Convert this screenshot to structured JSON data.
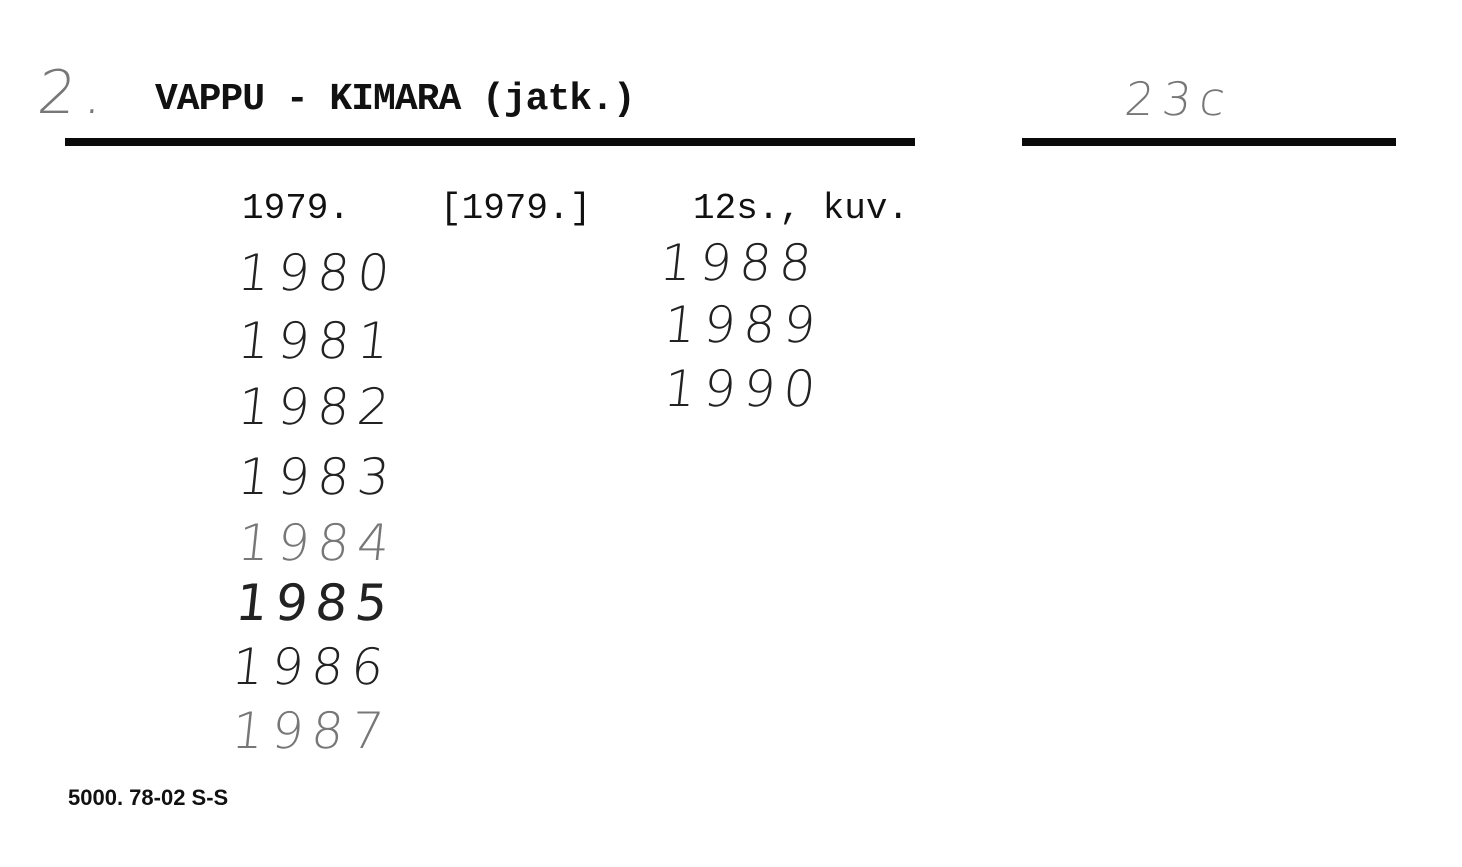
{
  "card": {
    "handwritten_mark_left": "2.",
    "heading": "VAPPU - KIMARA (jatk.)",
    "handwritten_code_right": "23c",
    "entry": {
      "year": "1979.",
      "bracket_year": "[1979.]",
      "extent": "12s., kuv."
    },
    "handwritten_years_col1": [
      "1980",
      "1981",
      "1982",
      "1983",
      "1984",
      "1985",
      "1986",
      "1987"
    ],
    "handwritten_years_col2": [
      "1988",
      "1989",
      "1990"
    ],
    "footer": "5000. 78-02 S-S"
  }
}
